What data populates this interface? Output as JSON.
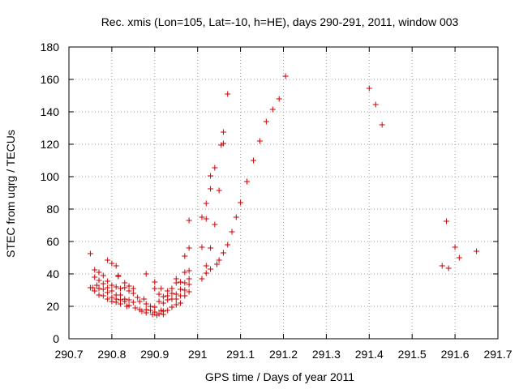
{
  "chart_data": {
    "type": "scatter",
    "title": "Rec. xmis (Lon=105, Lat=-10, h=HE), days 290-291, 2011, window 003",
    "xlabel": "GPS time / Days of year 2011",
    "ylabel": "STEC from uqrg / TECUs",
    "xlim": [
      290.7,
      291.7
    ],
    "ylim": [
      0,
      180
    ],
    "xticks": [
      "290.7",
      "290.8",
      "290.9",
      "291",
      "291.1",
      "291.2",
      "291.3",
      "291.4",
      "291.5",
      "291.6",
      "291.7"
    ],
    "yticks": [
      "0",
      "20",
      "40",
      "60",
      "80",
      "100",
      "120",
      "140",
      "160",
      "180"
    ],
    "grid": true,
    "marker": "plus",
    "color": "#cc0000",
    "series": [
      {
        "name": "",
        "points": [
          [
            290.75,
            52.5
          ],
          [
            290.75,
            31.5
          ],
          [
            290.755,
            31.5
          ],
          [
            290.76,
            42.5
          ],
          [
            290.76,
            38.0
          ],
          [
            290.76,
            29.5
          ],
          [
            290.765,
            33.0
          ],
          [
            290.77,
            41.0
          ],
          [
            290.77,
            36.0
          ],
          [
            290.77,
            31.0
          ],
          [
            290.77,
            27.0
          ],
          [
            290.78,
            39.0
          ],
          [
            290.78,
            34.0
          ],
          [
            290.78,
            30.5
          ],
          [
            290.78,
            26.5
          ],
          [
            290.79,
            48.5
          ],
          [
            290.79,
            35.5
          ],
          [
            290.79,
            31.5
          ],
          [
            290.79,
            28.5
          ],
          [
            290.79,
            24.5
          ],
          [
            290.8,
            46.5
          ],
          [
            290.8,
            33.0
          ],
          [
            290.8,
            29.5
          ],
          [
            290.8,
            25.5
          ],
          [
            290.8,
            23.0
          ],
          [
            290.81,
            45.0
          ],
          [
            290.81,
            32.0
          ],
          [
            290.81,
            27.0
          ],
          [
            290.81,
            24.5
          ],
          [
            290.81,
            22.5
          ],
          [
            290.815,
            39.0
          ],
          [
            290.815,
            38.5
          ],
          [
            290.82,
            31.0
          ],
          [
            290.82,
            27.0
          ],
          [
            290.82,
            24.0
          ],
          [
            290.82,
            21.5
          ],
          [
            290.83,
            34.5
          ],
          [
            290.83,
            31.5
          ],
          [
            290.83,
            24.5
          ],
          [
            290.83,
            23.0
          ],
          [
            290.835,
            20.0
          ],
          [
            290.84,
            32.5
          ],
          [
            290.84,
            29.5
          ],
          [
            290.84,
            24.0
          ],
          [
            290.84,
            20.5
          ],
          [
            290.85,
            31.0
          ],
          [
            290.85,
            28.0
          ],
          [
            290.85,
            22.5
          ],
          [
            290.855,
            19.0
          ],
          [
            290.86,
            25.5
          ],
          [
            290.865,
            23.0
          ],
          [
            290.865,
            18.0
          ],
          [
            290.87,
            17.0
          ],
          [
            290.875,
            24.5
          ],
          [
            290.88,
            40.0
          ],
          [
            290.88,
            21.5
          ],
          [
            290.88,
            18.0
          ],
          [
            290.88,
            16.0
          ],
          [
            290.89,
            20.0
          ],
          [
            290.89,
            17.5
          ],
          [
            290.895,
            15.0
          ],
          [
            290.9,
            35.0
          ],
          [
            290.9,
            31.0
          ],
          [
            290.9,
            19.5
          ],
          [
            290.9,
            16.5
          ],
          [
            290.905,
            14.5
          ],
          [
            290.91,
            27.5
          ],
          [
            290.91,
            23.0
          ],
          [
            290.91,
            15.5
          ],
          [
            290.915,
            31.0
          ],
          [
            290.915,
            17.5
          ],
          [
            290.92,
            26.0
          ],
          [
            290.92,
            22.0
          ],
          [
            290.92,
            17.0
          ],
          [
            290.92,
            15.0
          ],
          [
            290.93,
            29.5
          ],
          [
            290.93,
            26.5
          ],
          [
            290.93,
            24.0
          ],
          [
            290.93,
            17.5
          ],
          [
            290.94,
            31.0
          ],
          [
            290.94,
            28.0
          ],
          [
            290.94,
            24.5
          ],
          [
            290.94,
            19.5
          ],
          [
            290.95,
            37.0
          ],
          [
            290.95,
            34.5
          ],
          [
            290.95,
            27.5
          ],
          [
            290.95,
            24.5
          ],
          [
            290.95,
            21.0
          ],
          [
            290.96,
            35.0
          ],
          [
            290.96,
            30.5
          ],
          [
            290.96,
            26.5
          ],
          [
            290.96,
            22.0
          ],
          [
            290.97,
            51.0
          ],
          [
            290.97,
            41.0
          ],
          [
            290.97,
            34.5
          ],
          [
            290.97,
            30.0
          ],
          [
            290.97,
            26.5
          ],
          [
            290.98,
            73.0
          ],
          [
            290.98,
            56.0
          ],
          [
            290.98,
            42.0
          ],
          [
            290.98,
            37.0
          ],
          [
            290.98,
            33.5
          ],
          [
            290.98,
            29.0
          ],
          [
            291.01,
            75.0
          ],
          [
            291.01,
            56.5
          ],
          [
            291.01,
            37.0
          ],
          [
            291.02,
            74.0
          ],
          [
            291.02,
            83.5
          ],
          [
            291.02,
            45.0
          ],
          [
            291.02,
            40.5
          ],
          [
            291.03,
            100.5
          ],
          [
            291.03,
            92.5
          ],
          [
            291.03,
            56.0
          ],
          [
            291.03,
            43.0
          ],
          [
            291.04,
            105.5
          ],
          [
            291.04,
            70.5
          ],
          [
            291.045,
            46.0
          ],
          [
            291.05,
            91.5
          ],
          [
            291.05,
            48.5
          ],
          [
            291.055,
            119.5
          ],
          [
            291.06,
            120.5
          ],
          [
            291.06,
            127.5
          ],
          [
            291.06,
            53.0
          ],
          [
            291.07,
            151.0
          ],
          [
            291.07,
            58.0
          ],
          [
            291.08,
            66.0
          ],
          [
            291.09,
            75.0
          ],
          [
            291.1,
            84.0
          ],
          [
            291.115,
            97.0
          ],
          [
            291.13,
            110.0
          ],
          [
            291.145,
            122.0
          ],
          [
            291.16,
            134.0
          ],
          [
            291.175,
            141.5
          ],
          [
            291.19,
            148.0
          ],
          [
            291.205,
            162.0
          ],
          [
            291.4,
            154.5
          ],
          [
            291.415,
            144.5
          ],
          [
            291.43,
            132.0
          ],
          [
            291.57,
            45.0
          ],
          [
            291.58,
            72.5
          ],
          [
            291.585,
            43.5
          ],
          [
            291.6,
            56.5
          ],
          [
            291.61,
            50.0
          ],
          [
            291.65,
            54.0
          ]
        ]
      }
    ]
  }
}
